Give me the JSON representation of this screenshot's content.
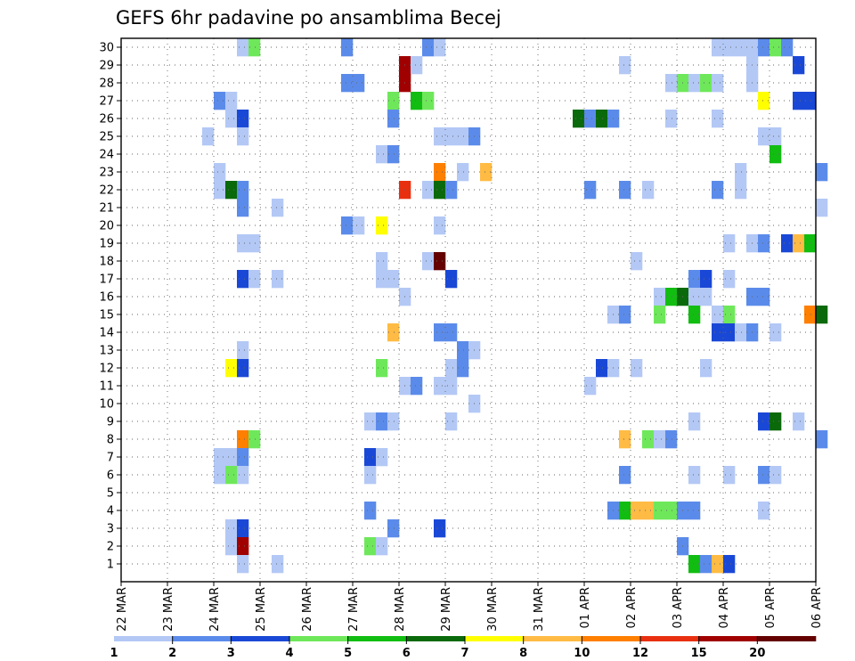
{
  "chart_data": {
    "type": "heatmap",
    "title": "GEFS 6hr padavine po ansamblima Becej",
    "y_ticks": [
      "1",
      "2",
      "3",
      "4",
      "5",
      "6",
      "7",
      "8",
      "9",
      "10",
      "11",
      "12",
      "13",
      "14",
      "15",
      "16",
      "17",
      "18",
      "19",
      "20",
      "21",
      "22",
      "23",
      "24",
      "25",
      "26",
      "27",
      "28",
      "29",
      "30"
    ],
    "x_ticks": [
      "22 MAR",
      "23 MAR",
      "24 MAR",
      "25 MAR",
      "26 MAR",
      "27 MAR",
      "28 MAR",
      "29 MAR",
      "30 MAR",
      "31 MAR",
      "01 APR",
      "02 APR",
      "03 APR",
      "04 APR",
      "05 APR",
      "06 APR"
    ],
    "steps_per_day": 4,
    "grid": true,
    "legend": {
      "position": "bottom",
      "colors": [
        "#b3c8f5",
        "#5b8bea",
        "#1a48d6",
        "#6ee85a",
        "#12bd12",
        "#0a690a",
        "#ffff00",
        "#ffbb44",
        "#ff7f00",
        "#e83010",
        "#a00000",
        "#640000"
      ],
      "labels": [
        "1",
        "2",
        "3",
        "4",
        "5",
        "6",
        "7",
        "8",
        "10",
        "12",
        "15",
        "20"
      ]
    },
    "cells": [
      {
        "m": 30,
        "s": 10,
        "c": 1
      },
      {
        "m": 30,
        "s": 11,
        "c": 4
      },
      {
        "m": 30,
        "s": 19,
        "c": 2
      },
      {
        "m": 30,
        "s": 26,
        "c": 2
      },
      {
        "m": 30,
        "s": 27,
        "c": 1
      },
      {
        "m": 30,
        "s": 51,
        "c": 1
      },
      {
        "m": 30,
        "s": 52,
        "c": 1
      },
      {
        "m": 30,
        "s": 53,
        "c": 1
      },
      {
        "m": 30,
        "s": 54,
        "c": 1
      },
      {
        "m": 30,
        "s": 55,
        "c": 2
      },
      {
        "m": 30,
        "s": 56,
        "c": 4
      },
      {
        "m": 30,
        "s": 57,
        "c": 2
      },
      {
        "m": 29,
        "s": 24,
        "c": 11
      },
      {
        "m": 29,
        "s": 25,
        "c": 1
      },
      {
        "m": 29,
        "s": 43,
        "c": 1
      },
      {
        "m": 29,
        "s": 54,
        "c": 1
      },
      {
        "m": 29,
        "s": 58,
        "c": 3
      },
      {
        "m": 28,
        "s": 19,
        "c": 2
      },
      {
        "m": 28,
        "s": 20,
        "c": 2
      },
      {
        "m": 28,
        "s": 24,
        "c": 11
      },
      {
        "m": 28,
        "s": 47,
        "c": 1
      },
      {
        "m": 28,
        "s": 48,
        "c": 4
      },
      {
        "m": 28,
        "s": 49,
        "c": 1
      },
      {
        "m": 28,
        "s": 50,
        "c": 4
      },
      {
        "m": 28,
        "s": 51,
        "c": 1
      },
      {
        "m": 28,
        "s": 54,
        "c": 1
      },
      {
        "m": 27,
        "s": 8,
        "c": 2
      },
      {
        "m": 27,
        "s": 9,
        "c": 1
      },
      {
        "m": 27,
        "s": 23,
        "c": 4
      },
      {
        "m": 27,
        "s": 25,
        "c": 5
      },
      {
        "m": 27,
        "s": 26,
        "c": 4
      },
      {
        "m": 27,
        "s": 55,
        "c": 7
      },
      {
        "m": 27,
        "s": 58,
        "c": 3
      },
      {
        "m": 27,
        "s": 59,
        "c": 3
      },
      {
        "m": 26,
        "s": 9,
        "c": 1
      },
      {
        "m": 26,
        "s": 10,
        "c": 3
      },
      {
        "m": 26,
        "s": 23,
        "c": 2
      },
      {
        "m": 26,
        "s": 39,
        "c": 6
      },
      {
        "m": 26,
        "s": 40,
        "c": 2
      },
      {
        "m": 26,
        "s": 41,
        "c": 6
      },
      {
        "m": 26,
        "s": 42,
        "c": 2
      },
      {
        "m": 26,
        "s": 47,
        "c": 1
      },
      {
        "m": 26,
        "s": 51,
        "c": 1
      },
      {
        "m": 25,
        "s": 7,
        "c": 1
      },
      {
        "m": 25,
        "s": 10,
        "c": 1
      },
      {
        "m": 25,
        "s": 27,
        "c": 1
      },
      {
        "m": 25,
        "s": 28,
        "c": 1
      },
      {
        "m": 25,
        "s": 29,
        "c": 1
      },
      {
        "m": 25,
        "s": 30,
        "c": 2
      },
      {
        "m": 25,
        "s": 55,
        "c": 1
      },
      {
        "m": 25,
        "s": 56,
        "c": 1
      },
      {
        "m": 24,
        "s": 22,
        "c": 1
      },
      {
        "m": 24,
        "s": 23,
        "c": 2
      },
      {
        "m": 24,
        "s": 56,
        "c": 5
      },
      {
        "m": 23,
        "s": 8,
        "c": 1
      },
      {
        "m": 23,
        "s": 27,
        "c": 9
      },
      {
        "m": 23,
        "s": 29,
        "c": 1
      },
      {
        "m": 23,
        "s": 31,
        "c": 8
      },
      {
        "m": 23,
        "s": 53,
        "c": 1
      },
      {
        "m": 23,
        "s": 60,
        "c": 2
      },
      {
        "m": 22,
        "s": 8,
        "c": 1
      },
      {
        "m": 22,
        "s": 9,
        "c": 6
      },
      {
        "m": 22,
        "s": 10,
        "c": 2
      },
      {
        "m": 22,
        "s": 24,
        "c": 10
      },
      {
        "m": 22,
        "s": 26,
        "c": 1
      },
      {
        "m": 22,
        "s": 27,
        "c": 6
      },
      {
        "m": 22,
        "s": 28,
        "c": 2
      },
      {
        "m": 22,
        "s": 40,
        "c": 2
      },
      {
        "m": 22,
        "s": 43,
        "c": 2
      },
      {
        "m": 22,
        "s": 45,
        "c": 1
      },
      {
        "m": 22,
        "s": 51,
        "c": 2
      },
      {
        "m": 22,
        "s": 53,
        "c": 1
      },
      {
        "m": 21,
        "s": 10,
        "c": 2
      },
      {
        "m": 21,
        "s": 13,
        "c": 1
      },
      {
        "m": 21,
        "s": 60,
        "c": 1
      },
      {
        "m": 20,
        "s": 19,
        "c": 2
      },
      {
        "m": 20,
        "s": 20,
        "c": 1
      },
      {
        "m": 20,
        "s": 22,
        "c": 7
      },
      {
        "m": 20,
        "s": 27,
        "c": 1
      },
      {
        "m": 19,
        "s": 10,
        "c": 1
      },
      {
        "m": 19,
        "s": 11,
        "c": 1
      },
      {
        "m": 19,
        "s": 52,
        "c": 1
      },
      {
        "m": 19,
        "s": 54,
        "c": 1
      },
      {
        "m": 19,
        "s": 55,
        "c": 2
      },
      {
        "m": 19,
        "s": 57,
        "c": 3
      },
      {
        "m": 19,
        "s": 58,
        "c": 8
      },
      {
        "m": 19,
        "s": 59,
        "c": 5
      },
      {
        "m": 18,
        "s": 22,
        "c": 1
      },
      {
        "m": 18,
        "s": 26,
        "c": 1
      },
      {
        "m": 18,
        "s": 27,
        "c": 12
      },
      {
        "m": 18,
        "s": 44,
        "c": 1
      },
      {
        "m": 17,
        "s": 10,
        "c": 3
      },
      {
        "m": 17,
        "s": 11,
        "c": 1
      },
      {
        "m": 17,
        "s": 13,
        "c": 1
      },
      {
        "m": 17,
        "s": 22,
        "c": 1
      },
      {
        "m": 17,
        "s": 23,
        "c": 1
      },
      {
        "m": 17,
        "s": 28,
        "c": 3
      },
      {
        "m": 17,
        "s": 49,
        "c": 2
      },
      {
        "m": 17,
        "s": 50,
        "c": 3
      },
      {
        "m": 17,
        "s": 52,
        "c": 1
      },
      {
        "m": 16,
        "s": 24,
        "c": 1
      },
      {
        "m": 16,
        "s": 46,
        "c": 1
      },
      {
        "m": 16,
        "s": 47,
        "c": 5
      },
      {
        "m": 16,
        "s": 48,
        "c": 6
      },
      {
        "m": 16,
        "s": 49,
        "c": 1
      },
      {
        "m": 16,
        "s": 50,
        "c": 1
      },
      {
        "m": 16,
        "s": 54,
        "c": 2
      },
      {
        "m": 16,
        "s": 55,
        "c": 2
      },
      {
        "m": 15,
        "s": 42,
        "c": 1
      },
      {
        "m": 15,
        "s": 43,
        "c": 2
      },
      {
        "m": 15,
        "s": 46,
        "c": 4
      },
      {
        "m": 15,
        "s": 49,
        "c": 5
      },
      {
        "m": 15,
        "s": 51,
        "c": 1
      },
      {
        "m": 15,
        "s": 52,
        "c": 4
      },
      {
        "m": 15,
        "s": 59,
        "c": 9
      },
      {
        "m": 15,
        "s": 60,
        "c": 6
      },
      {
        "m": 14,
        "s": 23,
        "c": 8
      },
      {
        "m": 14,
        "s": 27,
        "c": 2
      },
      {
        "m": 14,
        "s": 28,
        "c": 2
      },
      {
        "m": 14,
        "s": 51,
        "c": 3
      },
      {
        "m": 14,
        "s": 52,
        "c": 3
      },
      {
        "m": 14,
        "s": 53,
        "c": 1
      },
      {
        "m": 14,
        "s": 54,
        "c": 2
      },
      {
        "m": 14,
        "s": 56,
        "c": 1
      },
      {
        "m": 13,
        "s": 10,
        "c": 1
      },
      {
        "m": 13,
        "s": 29,
        "c": 2
      },
      {
        "m": 13,
        "s": 30,
        "c": 1
      },
      {
        "m": 12,
        "s": 9,
        "c": 7
      },
      {
        "m": 12,
        "s": 10,
        "c": 3
      },
      {
        "m": 12,
        "s": 22,
        "c": 4
      },
      {
        "m": 12,
        "s": 28,
        "c": 1
      },
      {
        "m": 12,
        "s": 29,
        "c": 2
      },
      {
        "m": 12,
        "s": 41,
        "c": 3
      },
      {
        "m": 12,
        "s": 42,
        "c": 1
      },
      {
        "m": 12,
        "s": 44,
        "c": 1
      },
      {
        "m": 12,
        "s": 50,
        "c": 1
      },
      {
        "m": 11,
        "s": 24,
        "c": 1
      },
      {
        "m": 11,
        "s": 25,
        "c": 2
      },
      {
        "m": 11,
        "s": 27,
        "c": 1
      },
      {
        "m": 11,
        "s": 28,
        "c": 1
      },
      {
        "m": 11,
        "s": 40,
        "c": 1
      },
      {
        "m": 10,
        "s": 30,
        "c": 1
      },
      {
        "m": 9,
        "s": 21,
        "c": 1
      },
      {
        "m": 9,
        "s": 22,
        "c": 2
      },
      {
        "m": 9,
        "s": 23,
        "c": 1
      },
      {
        "m": 9,
        "s": 28,
        "c": 1
      },
      {
        "m": 9,
        "s": 49,
        "c": 1
      },
      {
        "m": 9,
        "s": 55,
        "c": 3
      },
      {
        "m": 9,
        "s": 56,
        "c": 6
      },
      {
        "m": 9,
        "s": 58,
        "c": 1
      },
      {
        "m": 8,
        "s": 10,
        "c": 9
      },
      {
        "m": 8,
        "s": 11,
        "c": 4
      },
      {
        "m": 8,
        "s": 43,
        "c": 8
      },
      {
        "m": 8,
        "s": 45,
        "c": 4
      },
      {
        "m": 8,
        "s": 46,
        "c": 1
      },
      {
        "m": 8,
        "s": 47,
        "c": 2
      },
      {
        "m": 8,
        "s": 60,
        "c": 2
      },
      {
        "m": 7,
        "s": 8,
        "c": 1
      },
      {
        "m": 7,
        "s": 9,
        "c": 1
      },
      {
        "m": 7,
        "s": 10,
        "c": 2
      },
      {
        "m": 7,
        "s": 21,
        "c": 3
      },
      {
        "m": 7,
        "s": 22,
        "c": 1
      },
      {
        "m": 6,
        "s": 8,
        "c": 1
      },
      {
        "m": 6,
        "s": 9,
        "c": 4
      },
      {
        "m": 6,
        "s": 10,
        "c": 1
      },
      {
        "m": 6,
        "s": 21,
        "c": 1
      },
      {
        "m": 6,
        "s": 43,
        "c": 2
      },
      {
        "m": 6,
        "s": 49,
        "c": 1
      },
      {
        "m": 6,
        "s": 52,
        "c": 1
      },
      {
        "m": 6,
        "s": 55,
        "c": 2
      },
      {
        "m": 6,
        "s": 56,
        "c": 1
      },
      {
        "m": 4,
        "s": 21,
        "c": 2
      },
      {
        "m": 4,
        "s": 42,
        "c": 2
      },
      {
        "m": 4,
        "s": 43,
        "c": 5
      },
      {
        "m": 4,
        "s": 44,
        "c": 8
      },
      {
        "m": 4,
        "s": 45,
        "c": 8
      },
      {
        "m": 4,
        "s": 46,
        "c": 4
      },
      {
        "m": 4,
        "s": 47,
        "c": 4
      },
      {
        "m": 4,
        "s": 48,
        "c": 2
      },
      {
        "m": 4,
        "s": 49,
        "c": 2
      },
      {
        "m": 4,
        "s": 55,
        "c": 1
      },
      {
        "m": 3,
        "s": 9,
        "c": 1
      },
      {
        "m": 3,
        "s": 10,
        "c": 3
      },
      {
        "m": 3,
        "s": 23,
        "c": 2
      },
      {
        "m": 3,
        "s": 27,
        "c": 3
      },
      {
        "m": 2,
        "s": 9,
        "c": 1
      },
      {
        "m": 2,
        "s": 10,
        "c": 11
      },
      {
        "m": 2,
        "s": 21,
        "c": 4
      },
      {
        "m": 2,
        "s": 22,
        "c": 1
      },
      {
        "m": 2,
        "s": 48,
        "c": 2
      },
      {
        "m": 1,
        "s": 10,
        "c": 1
      },
      {
        "m": 1,
        "s": 13,
        "c": 1
      },
      {
        "m": 1,
        "s": 49,
        "c": 5
      },
      {
        "m": 1,
        "s": 50,
        "c": 2
      },
      {
        "m": 1,
        "s": 51,
        "c": 8
      },
      {
        "m": 1,
        "s": 52,
        "c": 3
      }
    ]
  }
}
